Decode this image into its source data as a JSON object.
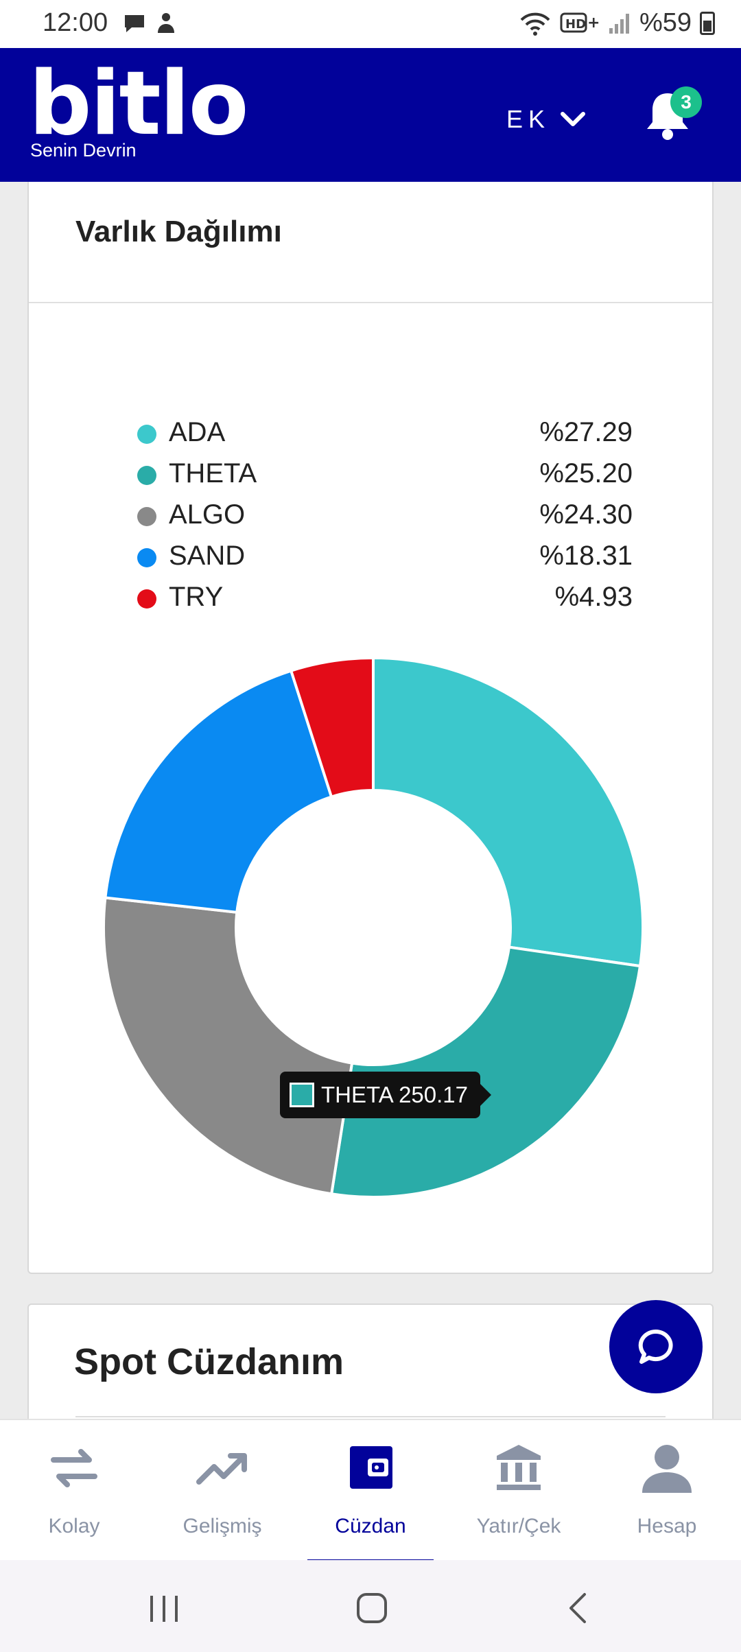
{
  "status_bar": {
    "time": "12:00",
    "battery": "%59",
    "icons": [
      "chat-bubble-icon",
      "person-alert-icon",
      "wifi-icon",
      "hd-plus-icon",
      "signal-icon",
      "battery-icon"
    ]
  },
  "header": {
    "logo": "bitlo",
    "tagline": "Senin Devrin",
    "lang": "EK",
    "notifications": "3"
  },
  "allocation_card": {
    "title": "Varlık Dağılımı",
    "tooltip": "THETA 250.17"
  },
  "chart_data": {
    "type": "pie",
    "donut": true,
    "slices": [
      {
        "label": "ADA",
        "percent_label": "%27.29",
        "value": 27.29,
        "color": "#3cc8cc"
      },
      {
        "label": "THETA",
        "percent_label": "%25.20",
        "value": 25.2,
        "color": "#2aaca8"
      },
      {
        "label": "ALGO",
        "percent_label": "%24.30",
        "value": 24.3,
        "color": "#898989"
      },
      {
        "label": "SAND",
        "percent_label": "%18.31",
        "value": 18.31,
        "color": "#0a8af2"
      },
      {
        "label": "TRY",
        "percent_label": "%4.93",
        "value": 4.93,
        "color": "#e30c18"
      }
    ],
    "legend_position": "top"
  },
  "spot_card": {
    "title": "Spot Cüzdanım"
  },
  "bottom_nav": {
    "items": [
      {
        "label": "Kolay",
        "icon": "swap-arrows-icon"
      },
      {
        "label": "Gelişmiş",
        "icon": "trend-chart-icon"
      },
      {
        "label": "Cüzdan",
        "icon": "wallet-icon",
        "active": true
      },
      {
        "label": "Yatır/Çek",
        "icon": "bank-icon"
      },
      {
        "label": "Hesap",
        "icon": "user-icon"
      }
    ]
  },
  "colors": {
    "brand": "#02029a",
    "badge": "#1cc08c"
  }
}
